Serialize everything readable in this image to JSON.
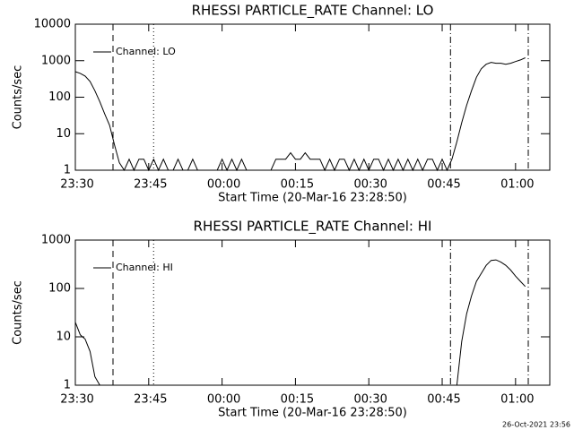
{
  "chart_data": [
    {
      "type": "line",
      "title": "RHESSI PARTICLE_RATE Channel: LO",
      "xlabel": "Start Time (20-Mar-16 23:28:50)",
      "ylabel": "Counts/sec",
      "log_y": true,
      "legend": "upper left",
      "x": [
        0,
        1,
        2,
        3,
        4,
        5,
        6,
        7,
        8,
        9,
        10,
        11,
        12,
        13,
        14,
        15,
        16,
        17,
        18,
        19,
        20,
        21,
        22,
        23,
        24,
        25,
        26,
        27,
        28,
        29,
        30,
        31,
        32,
        33,
        34,
        35,
        36,
        37,
        38,
        39,
        40,
        41,
        42,
        43,
        44,
        45,
        46,
        47,
        48,
        49,
        50,
        51,
        52,
        53,
        54,
        55,
        56,
        57,
        58,
        59,
        60,
        61,
        62,
        63,
        64,
        65,
        66,
        67,
        68,
        69,
        70,
        71,
        72,
        73,
        74,
        75,
        76,
        77,
        78,
        79,
        80,
        81,
        82,
        83,
        84,
        85,
        86,
        87,
        88,
        89,
        90,
        91,
        92
      ],
      "series": [
        {
          "name": "Channel: LO",
          "color": "#000000",
          "values": [
            500,
            450,
            380,
            270,
            150,
            75,
            35,
            17,
            5,
            1.6,
            1,
            2,
            1,
            2,
            2,
            1,
            2,
            1,
            2,
            1,
            1,
            2,
            1,
            1,
            2,
            1,
            1,
            1,
            1,
            1,
            2,
            1,
            2,
            1,
            2,
            1,
            1,
            1,
            1,
            1,
            1,
            2,
            2,
            2,
            3,
            2,
            2,
            3,
            2,
            2,
            2,
            1,
            2,
            1,
            2,
            2,
            1,
            2,
            1,
            2,
            1,
            2,
            2,
            1,
            2,
            1,
            2,
            1,
            2,
            1,
            2,
            1,
            2,
            2,
            1,
            2,
            1,
            2,
            6,
            20,
            60,
            150,
            350,
            600,
            800,
            900,
            850,
            850,
            800,
            850,
            950,
            1050,
            1200
          ]
        }
      ],
      "xlim": [
        0,
        97
      ],
      "ylim": [
        1,
        10000
      ],
      "xticks": [
        {
          "value": 0,
          "label": "23:30"
        },
        {
          "value": 15,
          "label": "23:45"
        },
        {
          "value": 30,
          "label": "00:00"
        },
        {
          "value": 45,
          "label": "00:15"
        },
        {
          "value": 60,
          "label": "00:30"
        },
        {
          "value": 75,
          "label": "00:45"
        },
        {
          "value": 90,
          "label": "01:00"
        }
      ],
      "yticks": [
        1,
        10,
        100,
        1000,
        10000
      ],
      "vlines": [
        {
          "x": 7.7,
          "style": "dashed"
        },
        {
          "x": 16,
          "style": "dotted"
        },
        {
          "x": 76.7,
          "style": "dashdot"
        },
        {
          "x": 92.6,
          "style": "dashdot"
        }
      ]
    },
    {
      "type": "line",
      "title": "RHESSI PARTICLE_RATE Channel: HI",
      "xlabel": "Start Time (20-Mar-16 23:28:50)",
      "ylabel": "Counts/sec",
      "log_y": true,
      "legend": "upper left",
      "x": [
        0,
        1,
        2,
        3,
        4,
        5,
        40,
        78,
        79,
        80,
        81,
        82,
        83,
        84,
        85,
        86,
        87,
        88,
        89,
        90,
        91,
        92
      ],
      "series": [
        {
          "name": "Channel: HI",
          "color": "#000000",
          "values": [
            20,
            11,
            9,
            5,
            1.5,
            1,
            null,
            1,
            8,
            30,
            70,
            140,
            205,
            300,
            380,
            390,
            350,
            300,
            240,
            180,
            140,
            110
          ]
        }
      ],
      "xlim": [
        0,
        97
      ],
      "ylim": [
        1,
        1000
      ],
      "xticks": [
        {
          "value": 0,
          "label": "23:30"
        },
        {
          "value": 15,
          "label": "23:45"
        },
        {
          "value": 30,
          "label": "00:00"
        },
        {
          "value": 45,
          "label": "00:15"
        },
        {
          "value": 60,
          "label": "00:30"
        },
        {
          "value": 75,
          "label": "00:45"
        },
        {
          "value": 90,
          "label": "01:00"
        }
      ],
      "yticks": [
        1,
        10,
        100,
        1000
      ],
      "vlines": [
        {
          "x": 7.7,
          "style": "dashed"
        },
        {
          "x": 16,
          "style": "dotted"
        },
        {
          "x": 76.7,
          "style": "dashdot"
        },
        {
          "x": 92.6,
          "style": "dashdot"
        }
      ]
    }
  ],
  "footer": "26-Oct-2021 23:56"
}
